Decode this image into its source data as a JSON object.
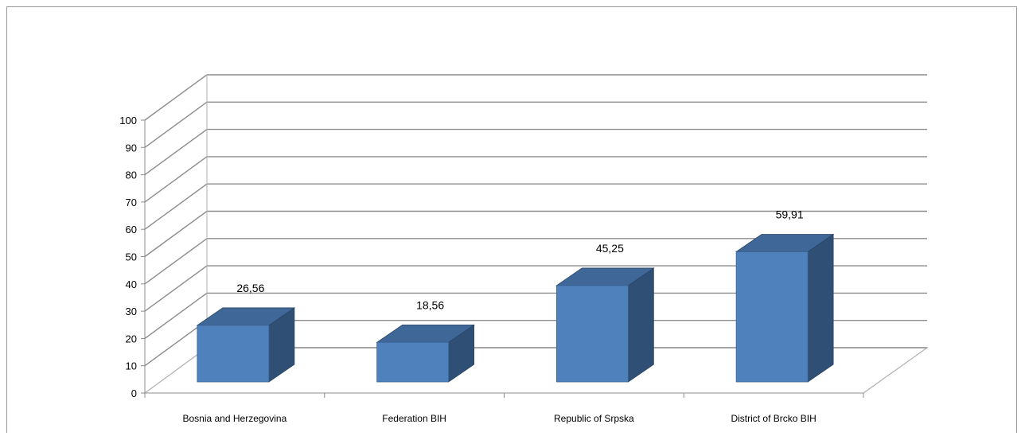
{
  "chart_data": {
    "type": "bar",
    "style": "3d-column",
    "title": "",
    "xlabel": "",
    "ylabel": "",
    "categories": [
      "Bosnia and Herzegovina",
      "Federation BIH",
      "Republic of Srpska",
      "District of Brcko BIH"
    ],
    "values": [
      26.56,
      18.56,
      45.25,
      59.91
    ],
    "data_labels": [
      "26,56",
      "18,56",
      "45,25",
      "59,91"
    ],
    "ylim": [
      0,
      100
    ],
    "yticks": [
      "0",
      "10",
      "20",
      "30",
      "40",
      "50",
      "60",
      "70",
      "80",
      "90",
      "100"
    ],
    "grid": true,
    "legend": "none",
    "colors": {
      "bar_front": "#4f81bd",
      "bar_top": "#3f6798",
      "bar_side": "#2f4f75",
      "gridline": "#8c8c8c"
    }
  }
}
